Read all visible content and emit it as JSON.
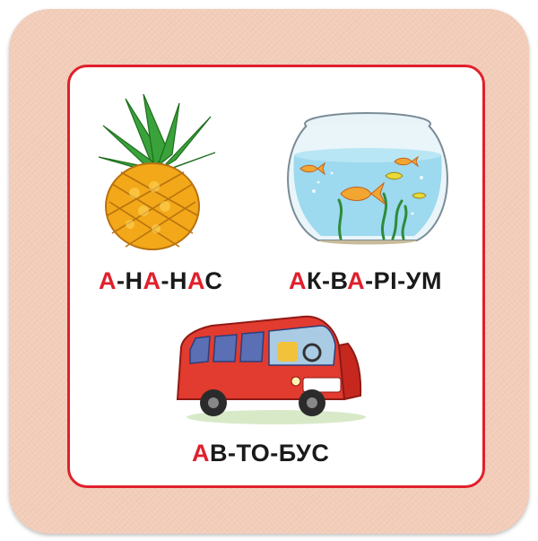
{
  "colors": {
    "accent": "#e0202c",
    "text": "#1a1a1a",
    "card": "#f2cdb9"
  },
  "items": [
    {
      "icon": "pineapple-icon",
      "word": [
        {
          "t": "А",
          "c": "red"
        },
        {
          "t": "-",
          "c": "dark"
        },
        {
          "t": "Н",
          "c": "dark"
        },
        {
          "t": "А",
          "c": "red"
        },
        {
          "t": "-",
          "c": "dark"
        },
        {
          "t": "Н",
          "c": "dark"
        },
        {
          "t": "А",
          "c": "red"
        },
        {
          "t": "С",
          "c": "dark"
        }
      ]
    },
    {
      "icon": "aquarium-icon",
      "word": [
        {
          "t": "А",
          "c": "red"
        },
        {
          "t": "К-",
          "c": "dark"
        },
        {
          "t": "В",
          "c": "dark"
        },
        {
          "t": "А",
          "c": "red"
        },
        {
          "t": "-",
          "c": "dark"
        },
        {
          "t": "РІ-УМ",
          "c": "dark"
        }
      ]
    },
    {
      "icon": "bus-icon",
      "word": [
        {
          "t": "А",
          "c": "red"
        },
        {
          "t": "В-ТО-БУС",
          "c": "dark"
        }
      ]
    }
  ]
}
